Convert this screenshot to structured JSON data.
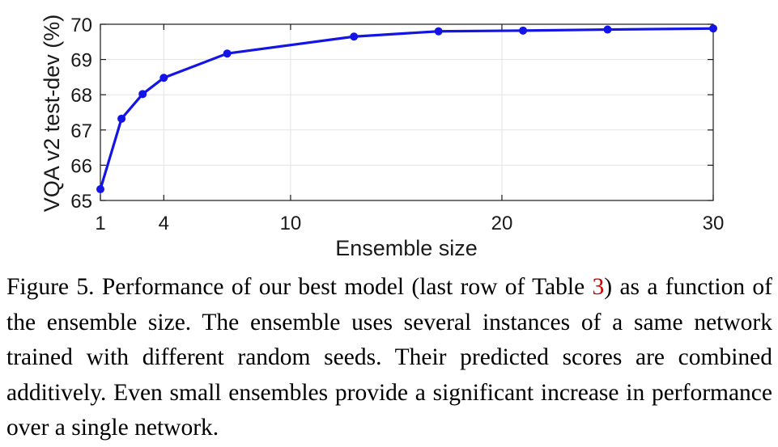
{
  "chart_data": {
    "type": "line",
    "x": [
      1,
      2,
      3,
      4,
      7,
      13,
      17,
      21,
      25,
      30
    ],
    "series": [
      {
        "values": [
          65.32,
          67.32,
          68.02,
          68.48,
          69.17,
          69.65,
          69.8,
          69.82,
          69.85,
          69.88
        ],
        "color": "#1414e6"
      }
    ],
    "xlabel": "Ensemble size",
    "ylabel": "VQA v2  test-dev (%)",
    "xlim": [
      1,
      30
    ],
    "ylim": [
      65,
      70
    ],
    "xticks": [
      1,
      4,
      10,
      20,
      30
    ],
    "yticks": [
      65,
      66,
      67,
      68,
      69,
      70
    ],
    "grid": true
  },
  "caption": {
    "prefix": "Figure 5. Performance of our best model (last row of Table ",
    "ref": "3",
    "suffix": ") as a function of the ensemble size. The ensemble uses several instances of a same network trained with different random seeds. Their predicted scores are combined additively. Even small ensembles provide a significant increase in performance over a single network."
  }
}
